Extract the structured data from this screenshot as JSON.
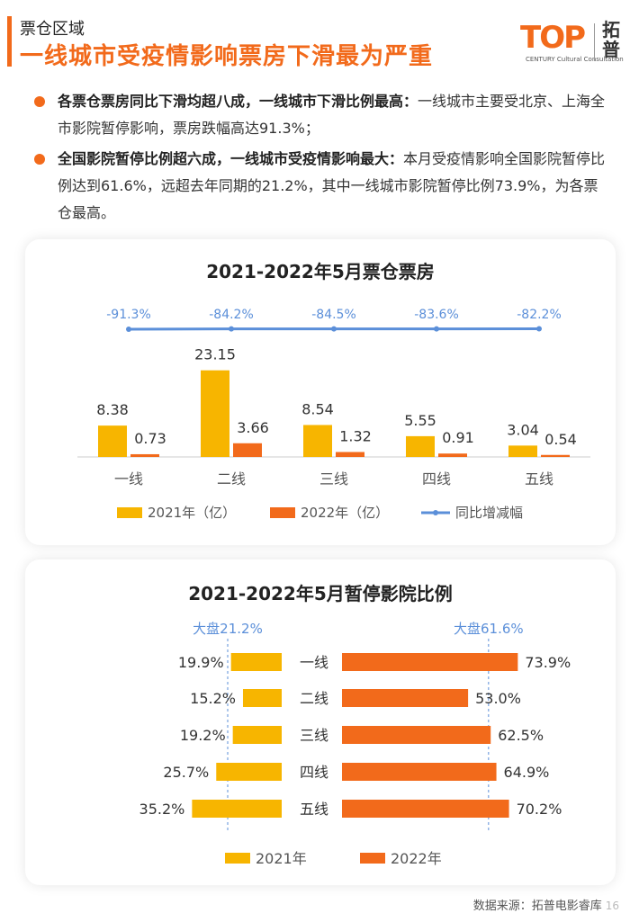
{
  "header": {
    "section": "票仓区域",
    "title": "一线城市受疫情影响票房下滑最为严重"
  },
  "logo": {
    "mark": "TOP",
    "sub": "CENTURY Cultural Consultation",
    "cn": "拓普"
  },
  "bullets": [
    {
      "lead": "各票仓票房同比下滑均超八成，一线城市下滑比例最高：",
      "text": "一线城市主要受北京、上海全市影院暂停影响，票房跌幅高达91.3%；"
    },
    {
      "lead": "全国影院暂停比例超六成，一线城市受疫情影响最大：",
      "text": "本月受疫情影响全国影院暂停比例达到61.6%，远超去年同期的21.2%，其中一线城市影院暂停比例73.9%，为各票仓最高。"
    }
  ],
  "chart_data": [
    {
      "type": "bar",
      "title": "2021-2022年5月票仓票房",
      "categories": [
        "一线",
        "二线",
        "三线",
        "四线",
        "五线"
      ],
      "series": [
        {
          "name": "2021年（亿）",
          "values": [
            8.38,
            23.15,
            8.54,
            5.55,
            3.04
          ],
          "color": "#f7b500"
        },
        {
          "name": "2022年（亿）",
          "values": [
            0.73,
            3.66,
            1.32,
            0.91,
            0.54
          ],
          "color": "#f26a1b"
        },
        {
          "name": "同比增减幅",
          "type": "line",
          "values": [
            -91.3,
            -84.2,
            -84.5,
            -83.6,
            -82.2
          ],
          "labels": [
            "-91.3%",
            "-84.2%",
            "-84.5%",
            "-83.6%",
            "-82.2%"
          ],
          "color": "#5b8fd9"
        }
      ],
      "bar_labels": [
        [
          "8.38",
          "23.15",
          "8.54",
          "5.55",
          "3.04"
        ],
        [
          "0.73",
          "3.66",
          "1.32",
          "0.91",
          "0.54"
        ]
      ],
      "ylim": [
        0,
        25
      ],
      "legend": "bottom"
    },
    {
      "type": "bar",
      "orientation": "horizontal-butterfly",
      "title": "2021-2022年5月暂停影院比例",
      "categories": [
        "一线",
        "二线",
        "三线",
        "四线",
        "五线"
      ],
      "series": [
        {
          "name": "2021年",
          "values": [
            19.9,
            15.2,
            19.2,
            25.7,
            35.2
          ],
          "labels": [
            "19.9%",
            "15.2%",
            "19.2%",
            "25.7%",
            "35.2%"
          ],
          "color": "#f7b500"
        },
        {
          "name": "2022年",
          "values": [
            73.9,
            53.0,
            62.5,
            64.9,
            70.2
          ],
          "labels": [
            "73.9%",
            "53.0%",
            "62.5%",
            "64.9%",
            "70.2%"
          ],
          "color": "#f26a1b"
        }
      ],
      "reference_lines": [
        {
          "series": "2021年",
          "value": 21.2,
          "label": "大盘21.2%"
        },
        {
          "series": "2022年",
          "value": 61.6,
          "label": "大盘61.6%"
        }
      ],
      "legend": "bottom"
    }
  ],
  "footer": {
    "source": "数据来源：拓普电影睿库",
    "page": "16"
  }
}
